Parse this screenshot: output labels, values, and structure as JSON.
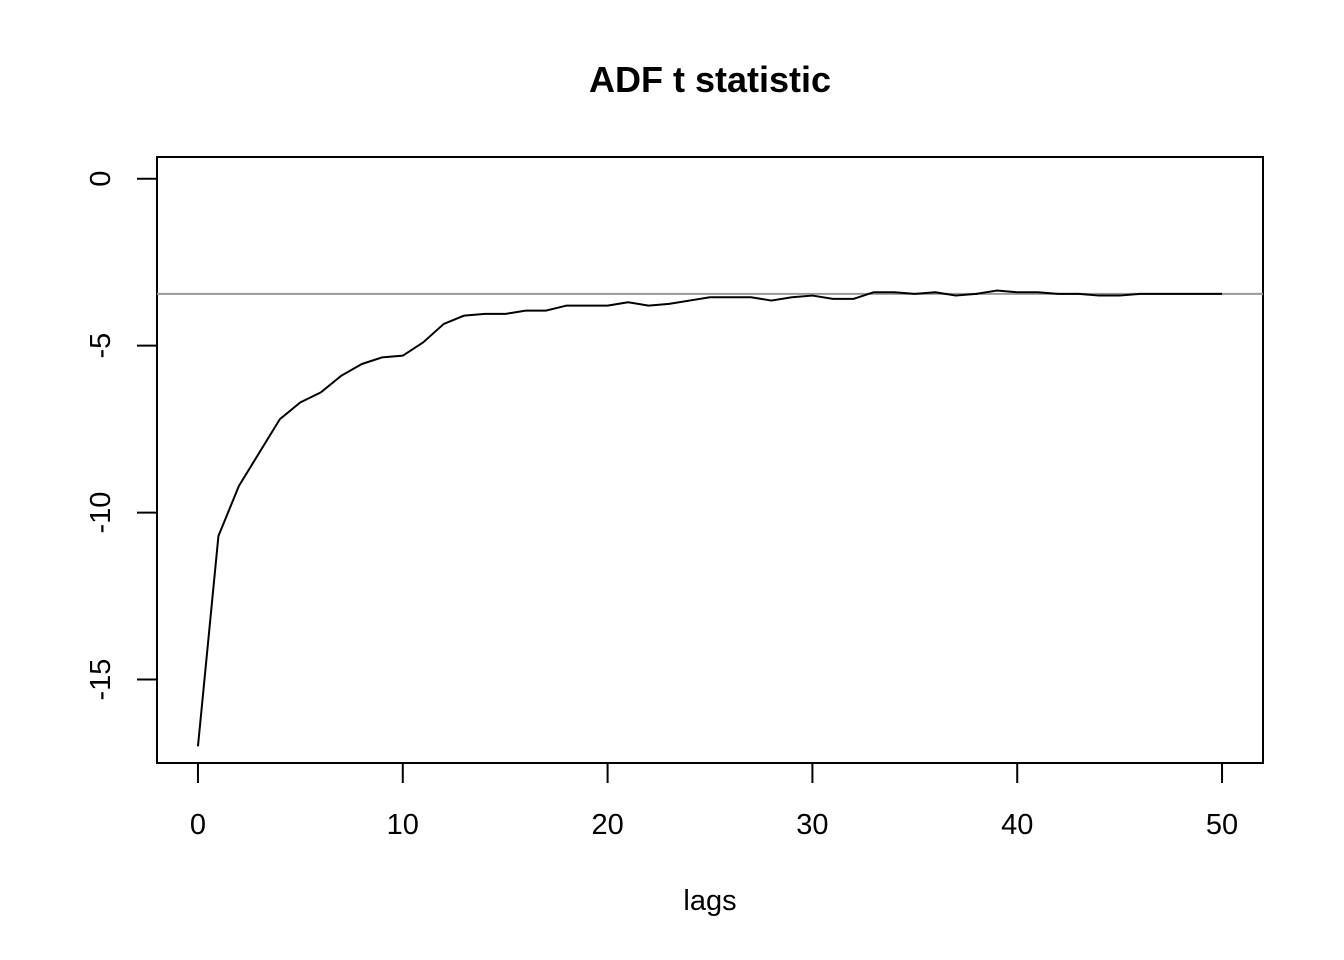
{
  "chart_data": {
    "type": "line",
    "title": "ADF t statistic",
    "xlabel": "lags",
    "ylabel": "",
    "xlim": [
      -2,
      52
    ],
    "ylim": [
      -17.5,
      0.65
    ],
    "x_ticks": [
      0,
      10,
      20,
      30,
      40,
      50
    ],
    "y_ticks": [
      0,
      -5,
      -10,
      -15
    ],
    "reference_line": {
      "y": -3.45,
      "color": "#999999"
    },
    "series": [
      {
        "x": [
          0,
          1,
          2,
          3,
          4,
          5,
          6,
          7,
          8,
          9,
          10,
          11,
          12,
          13,
          14,
          15,
          16,
          17,
          18,
          19,
          20,
          21,
          22,
          23,
          24,
          25,
          26,
          27,
          28,
          29,
          30,
          31,
          32,
          33,
          34,
          35,
          36,
          37,
          38,
          39,
          40,
          41,
          42,
          43,
          44,
          45,
          46,
          47,
          48,
          49,
          50
        ],
        "y": [
          -17.0,
          -10.7,
          -9.2,
          -8.2,
          -7.2,
          -6.7,
          -6.4,
          -5.9,
          -5.55,
          -5.35,
          -5.3,
          -4.9,
          -4.35,
          -4.1,
          -4.05,
          -4.05,
          -3.95,
          -3.95,
          -3.8,
          -3.8,
          -3.8,
          -3.7,
          -3.8,
          -3.75,
          -3.65,
          -3.55,
          -3.55,
          -3.55,
          -3.65,
          -3.55,
          -3.5,
          -3.6,
          -3.6,
          -3.4,
          -3.4,
          -3.45,
          -3.4,
          -3.5,
          -3.45,
          -3.35,
          -3.4,
          -3.4,
          -3.45,
          -3.45,
          -3.5,
          -3.5,
          -3.45,
          -3.45,
          -3.45,
          -3.45,
          -3.45
        ],
        "color": "#000000"
      }
    ],
    "grid": false,
    "legend": "none"
  }
}
